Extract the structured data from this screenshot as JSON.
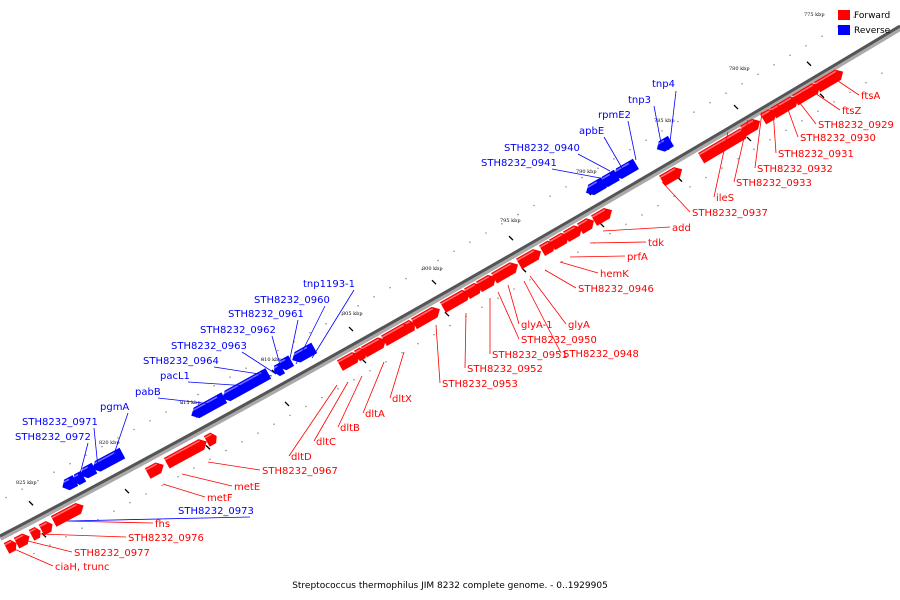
{
  "legend": [
    {
      "label": "Forward",
      "color": "#ff0000"
    },
    {
      "label": "Reverse",
      "color": "#0000ff"
    }
  ],
  "colors": {
    "forward": "#ff0000",
    "reverse": "#0000ff",
    "axis": "#555555"
  },
  "caption": "Streptococcus thermophilus JIM 8232 complete genome. - 0..1929905",
  "kbp_ticks": [
    "775 kbp",
    "780 kbp",
    "785 kbp",
    "790 kbp",
    "795 kbp",
    "800 kbp",
    "805 kbp",
    "810 kbp",
    "815 kbp",
    "820 kbp",
    "825 kbp"
  ],
  "forward_labels": [
    "ftsA",
    "ftsZ",
    "STH8232_0929",
    "STH8232_0930",
    "STH8232_0931",
    "STH8232_0932",
    "STH8232_0933",
    "ileS",
    "STH8232_0937",
    "add",
    "tdk",
    "prfA",
    "hemK",
    "STH8232_0946",
    "glyA",
    "glyA-1",
    "STH8232_0948",
    "STH8232_0950",
    "STH8232_0951",
    "STH8232_0952",
    "STH8232_0953",
    "dltX",
    "dltA",
    "dltB",
    "dltC",
    "dltD",
    "STH8232_0967",
    "metE",
    "metF",
    "fhs",
    "STH8232_0976",
    "STH8232_0977",
    "ciaH, trunc"
  ],
  "reverse_labels": [
    "tnp4",
    "tnp3",
    "rpmE2",
    "apbE",
    "STH8232_0940",
    "STH8232_0941",
    "tnp1193-1",
    "STH8232_0960",
    "STH8232_0961",
    "STH8232_0962",
    "STH8232_0963",
    "STH8232_0964",
    "pacL1",
    "pabB",
    "pgmA",
    "STH8232_0971",
    "STH8232_0972",
    "STH8232_0973"
  ]
}
